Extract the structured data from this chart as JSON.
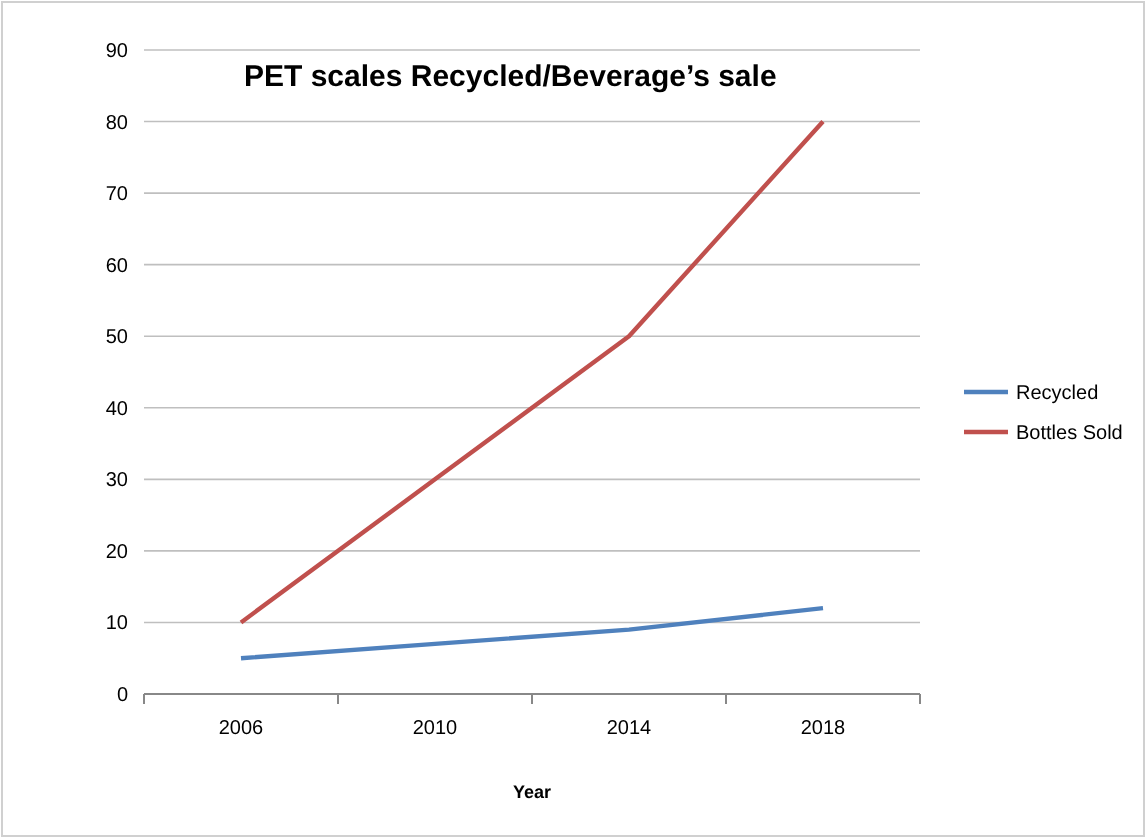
{
  "chart_data": {
    "type": "line",
    "title": "PET scales Recycled/Beverage’s sale",
    "xlabel": "Year",
    "categories": [
      "2006",
      "2010",
      "2014",
      "2018"
    ],
    "series": [
      {
        "name": "Recycled",
        "color": "#4f81bd",
        "values": [
          5,
          7,
          9,
          12
        ]
      },
      {
        "name": "Bottles Sold",
        "color": "#c0504d",
        "values": [
          10,
          30,
          50,
          80
        ]
      }
    ],
    "ylim": [
      0,
      90
    ],
    "yticks": [
      0,
      10,
      20,
      30,
      40,
      50,
      60,
      70,
      80,
      90
    ],
    "grid": "y",
    "legend": "right",
    "marker": "none",
    "line_style": "solid"
  }
}
